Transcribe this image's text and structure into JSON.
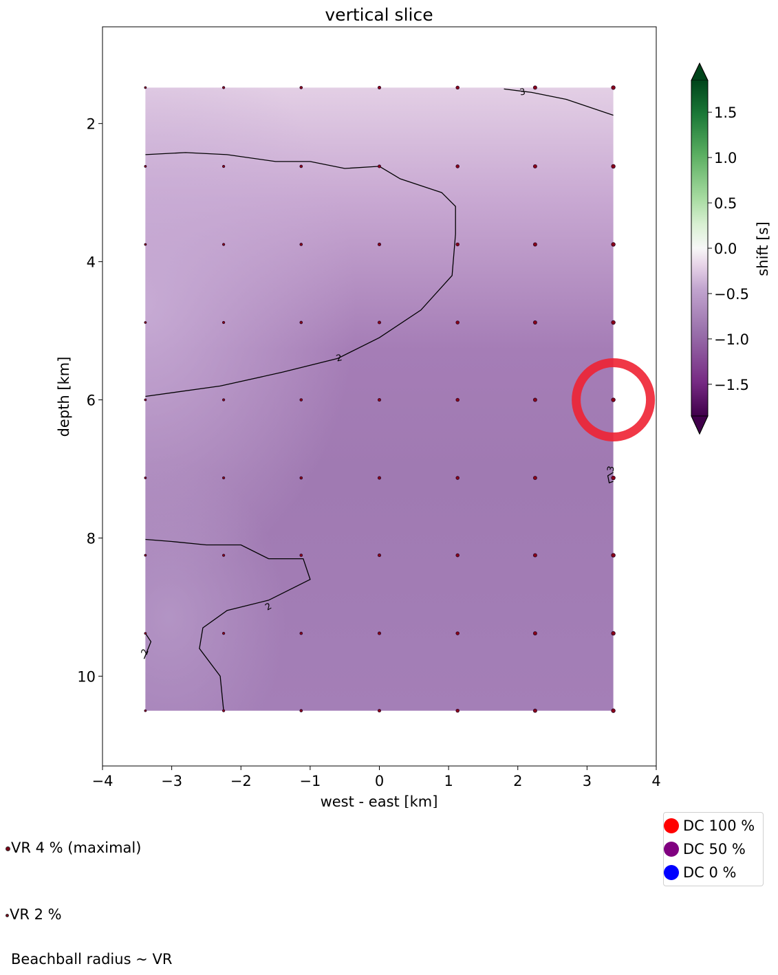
{
  "chart_data": {
    "type": "heatmap",
    "title": "vertical slice",
    "xlabel": "west - east [km]",
    "ylabel": "depth [km]",
    "xlim": [
      -4,
      4
    ],
    "ylim": [
      11.3,
      0.6
    ],
    "y_inverted": true,
    "x_ticks": [
      "−4",
      "−3",
      "−2",
      "−1",
      "0",
      "1",
      "2",
      "3",
      "4"
    ],
    "x_tick_values": [
      -4,
      -3,
      -2,
      -1,
      0,
      1,
      2,
      3,
      4
    ],
    "y_ticks": [
      "2",
      "4",
      "6",
      "8",
      "10"
    ],
    "y_tick_values": [
      2,
      4,
      6,
      8,
      10
    ],
    "grid_x": [
      -3.38,
      -2.25,
      -1.13,
      0,
      1.13,
      2.25,
      3.38
    ],
    "grid_y": [
      1.48,
      2.62,
      3.75,
      4.88,
      6.0,
      7.13,
      8.25,
      9.38,
      10.5
    ],
    "colorbar": {
      "label": "shift [s]",
      "ticks": [
        "−1.5",
        "−1.0",
        "−0.5",
        "0.0",
        "0.5",
        "1.0",
        "1.5"
      ],
      "tick_values": [
        -1.5,
        -1.0,
        -0.5,
        0.0,
        0.5,
        1.0,
        1.5
      ],
      "range": [
        -1.85,
        1.85
      ],
      "colormap": "PRGn"
    },
    "contour_labels": [
      "3",
      "2",
      "2",
      "2",
      "3"
    ],
    "highlight": {
      "x": 3.38,
      "y": 6.0,
      "color": "#ee2233"
    },
    "legend": {
      "placement": "bottom-right",
      "entries": [
        {
          "label": "DC 100 %",
          "color": "#ff0000"
        },
        {
          "label": "DC 50 %",
          "color": "#800080"
        },
        {
          "label": "DC 0 %",
          "color": "#0000ff"
        }
      ]
    }
  },
  "notes": {
    "vr_max": "VR  4 % (maximal)",
    "vr_half": "VR  2 %",
    "beachball": "Beachball radius ~ VR"
  }
}
